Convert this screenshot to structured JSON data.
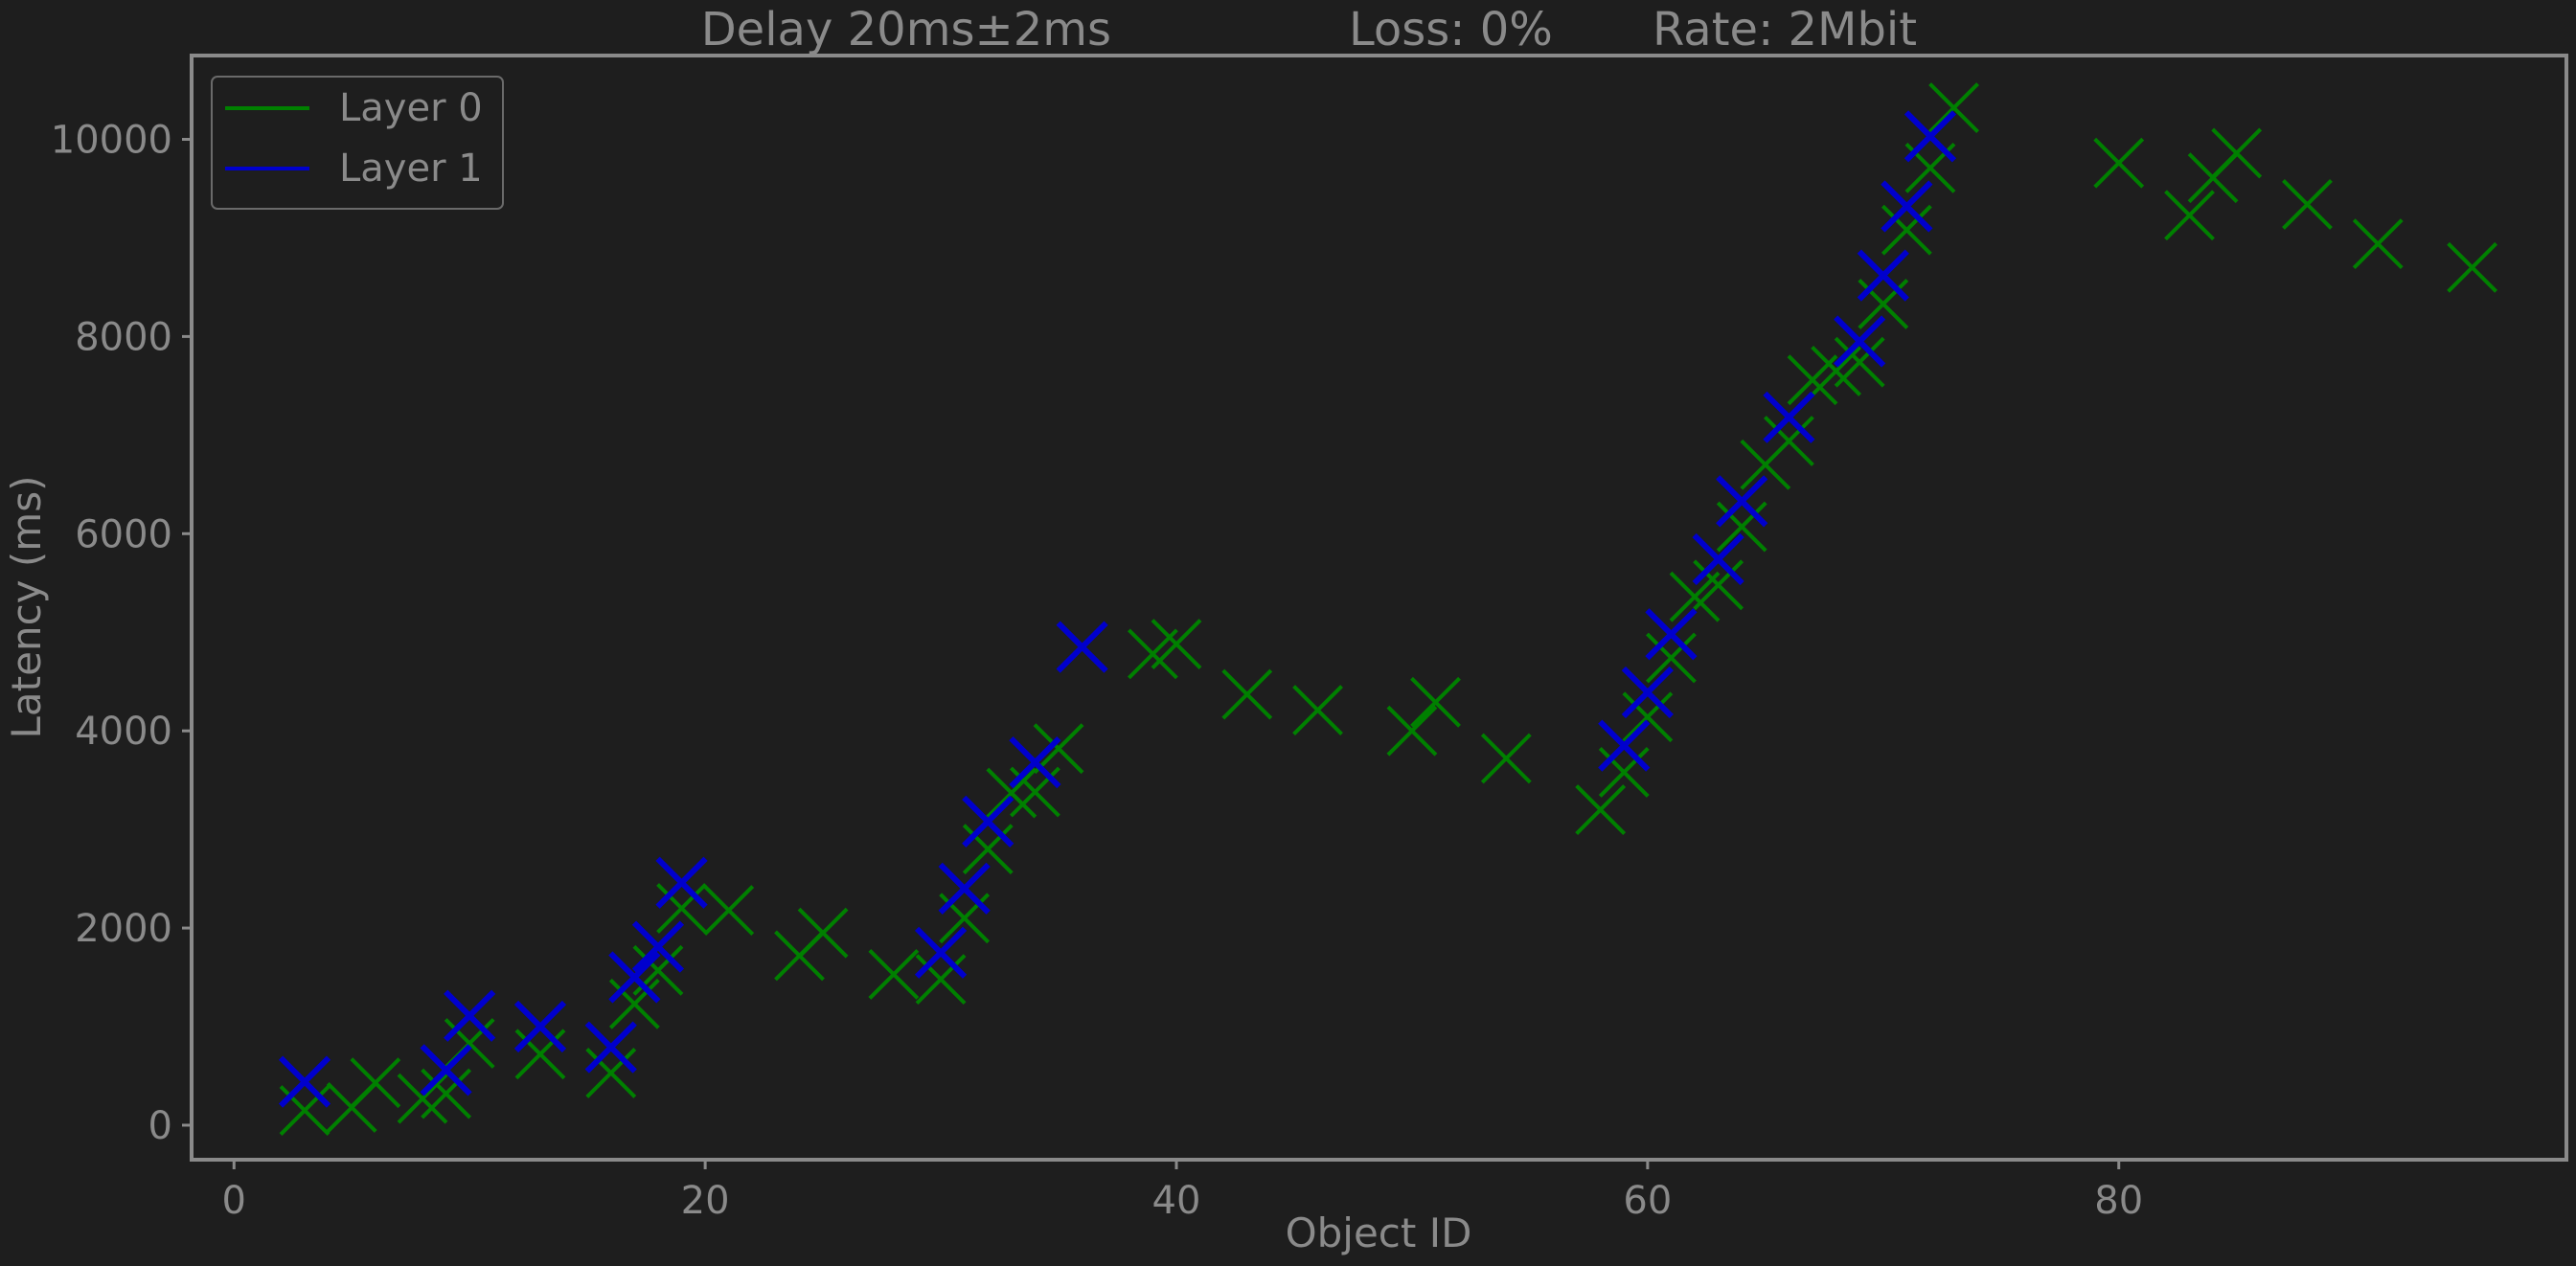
{
  "chart_data": {
    "type": "scatter",
    "title_parts": [
      "Delay 20ms±2ms",
      "Loss: 0%",
      "Rate: 2Mbit"
    ],
    "xlabel": "Object ID",
    "ylabel": "Latency (ms)",
    "xlim": [
      -1.8,
      99
    ],
    "ylim": [
      -350,
      10850
    ],
    "xticks": [
      0,
      20,
      40,
      60,
      80
    ],
    "yticks": [
      0,
      2000,
      4000,
      6000,
      8000,
      10000
    ],
    "grid": false,
    "legend_position": "top-left",
    "background_color": "#1e1e1e",
    "axes_color": "#8a8a8a",
    "series": [
      {
        "name": "Layer 0",
        "color": "#008000",
        "marker": "x",
        "points": [
          [
            3,
            150
          ],
          [
            5,
            180
          ],
          [
            6,
            430
          ],
          [
            8,
            270
          ],
          [
            9,
            320
          ],
          [
            10,
            830
          ],
          [
            13,
            720
          ],
          [
            16,
            530
          ],
          [
            17,
            1230
          ],
          [
            18,
            1570
          ],
          [
            19,
            2200
          ],
          [
            21,
            2180
          ],
          [
            24,
            1720
          ],
          [
            25,
            1950
          ],
          [
            28,
            1530
          ],
          [
            30,
            1480
          ],
          [
            31,
            2100
          ],
          [
            32,
            2800
          ],
          [
            33,
            3370
          ],
          [
            34,
            3380
          ],
          [
            35,
            3820
          ],
          [
            39,
            4780
          ],
          [
            40,
            4880
          ],
          [
            43,
            4370
          ],
          [
            46,
            4210
          ],
          [
            50,
            4000
          ],
          [
            51,
            4290
          ],
          [
            54,
            3720
          ],
          [
            58,
            3200
          ],
          [
            59,
            3580
          ],
          [
            60,
            4140
          ],
          [
            61,
            4740
          ],
          [
            62,
            5360
          ],
          [
            63,
            5480
          ],
          [
            64,
            6070
          ],
          [
            65,
            6700
          ],
          [
            66,
            6940
          ],
          [
            67,
            7560
          ],
          [
            68,
            7650
          ],
          [
            69,
            7740
          ],
          [
            70,
            8330
          ],
          [
            71,
            9080
          ],
          [
            72,
            9710
          ],
          [
            73,
            10320
          ],
          [
            80,
            9760
          ],
          [
            83,
            9230
          ],
          [
            84,
            9610
          ],
          [
            85,
            9860
          ],
          [
            88,
            9340
          ],
          [
            91,
            8940
          ],
          [
            95,
            8700
          ]
        ]
      },
      {
        "name": "Layer 1",
        "color": "#0000cd",
        "marker": "x",
        "points": [
          [
            3,
            440
          ],
          [
            9,
            560
          ],
          [
            10,
            1110
          ],
          [
            13,
            1000
          ],
          [
            16,
            790
          ],
          [
            17,
            1500
          ],
          [
            18,
            1810
          ],
          [
            19,
            2460
          ],
          [
            30,
            1750
          ],
          [
            31,
            2400
          ],
          [
            32,
            3080
          ],
          [
            34,
            3680
          ],
          [
            36,
            4850
          ],
          [
            59,
            3850
          ],
          [
            60,
            4390
          ],
          [
            61,
            4980
          ],
          [
            63,
            5740
          ],
          [
            64,
            6330
          ],
          [
            66,
            7180
          ],
          [
            69,
            7950
          ],
          [
            70,
            8620
          ],
          [
            71,
            9320
          ],
          [
            72,
            10030
          ]
        ]
      }
    ]
  }
}
